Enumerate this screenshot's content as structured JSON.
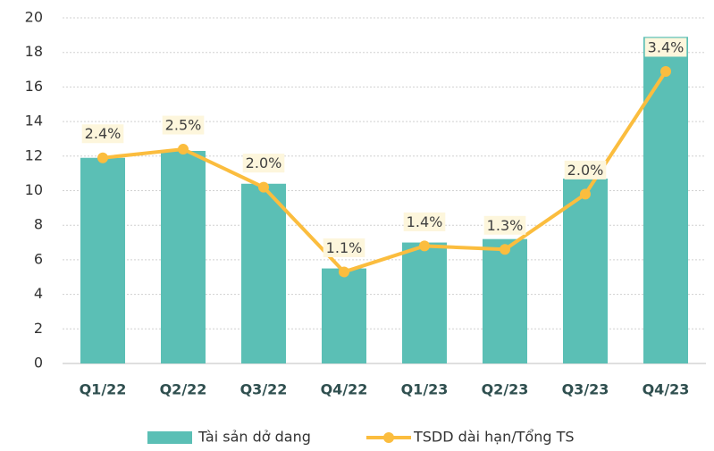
{
  "chart_data": {
    "type": "bar_line",
    "categories": [
      "Q1/22",
      "Q2/22",
      "Q3/22",
      "Q4/22",
      "Q1/23",
      "Q2/23",
      "Q3/23",
      "Q4/23"
    ],
    "series": [
      {
        "name": "Tài sản dở dang",
        "type": "bar",
        "color": "#5bbfb5",
        "values": [
          11.9,
          12.3,
          10.4,
          5.5,
          7.0,
          7.2,
          10.7,
          18.9
        ]
      },
      {
        "name": "TSDD dài hạn/Tổng TS",
        "type": "line",
        "axis": "y2",
        "color": "#fbbd3e",
        "values": [
          2.38,
          2.48,
          2.04,
          1.06,
          1.36,
          1.32,
          1.96,
          3.38
        ],
        "value_labels": [
          "2.4%",
          "2.5%",
          "2.0%",
          "1.1%",
          "1.4%",
          "1.3%",
          "2.0%",
          "3.4%"
        ]
      }
    ],
    "ylim": [
      0,
      20
    ],
    "yticks": [
      0,
      2,
      4,
      6,
      8,
      10,
      12,
      14,
      16,
      18,
      20
    ],
    "y2lim": [
      0,
      4
    ],
    "grid": true,
    "legend": "bottom"
  }
}
